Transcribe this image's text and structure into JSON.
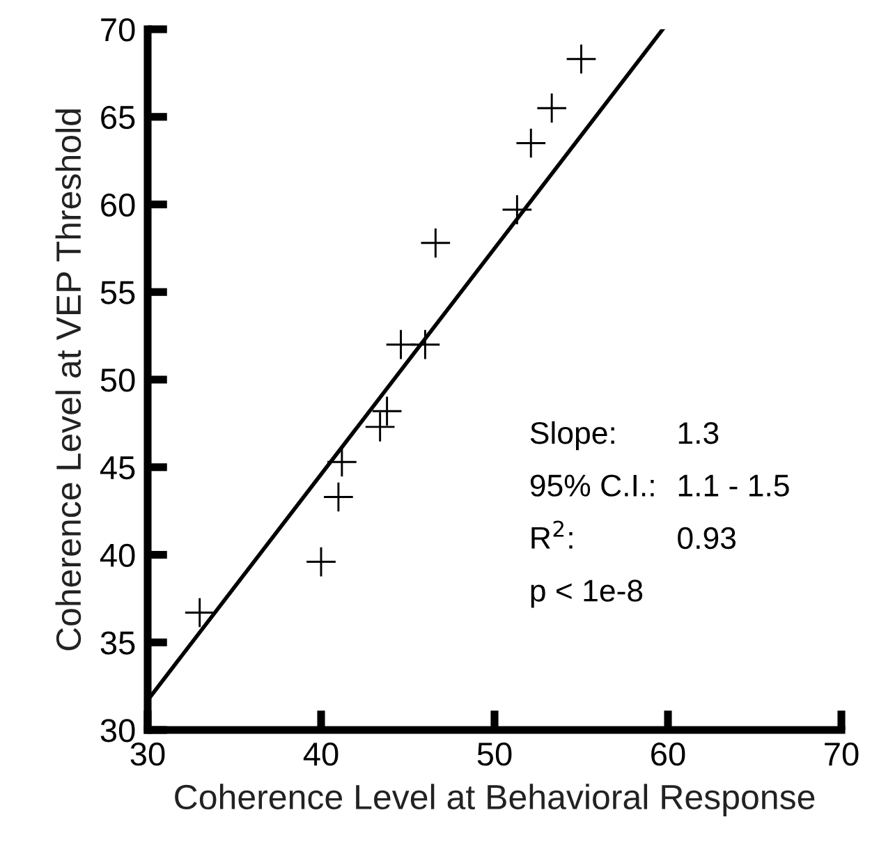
{
  "chart_data": {
    "type": "scatter",
    "xlabel": "Coherence Level at Behavioral Response",
    "ylabel": "Coherence Level at VEP Threshold",
    "xlim": [
      30,
      70
    ],
    "ylim": [
      30,
      70
    ],
    "xticks": [
      30,
      40,
      50,
      60,
      70
    ],
    "yticks": [
      30,
      35,
      40,
      45,
      50,
      55,
      60,
      65,
      70
    ],
    "grid": false,
    "marker": "cross",
    "series": [
      {
        "type": "scatter",
        "color": "#000000",
        "x": [
          33.0,
          40.0,
          41.0,
          41.2,
          43.4,
          43.8,
          44.6,
          46.0,
          46.6,
          51.3,
          52.1,
          53.3,
          55.0
        ],
        "values": [
          36.7,
          39.6,
          43.3,
          45.3,
          47.3,
          48.2,
          52.0,
          52.0,
          57.8,
          59.7,
          63.5,
          65.5,
          68.3
        ]
      },
      {
        "type": "line",
        "color": "#000000",
        "marker": "none",
        "line_style": "solid",
        "x": [
          30,
          59.7
        ],
        "values": [
          31.7,
          70
        ]
      }
    ],
    "annotations": [
      "Slope:",
      "1.3",
      "95% C.I.:",
      "1.1 - 1.5",
      "R$^{2}$:",
      "0.93",
      "p < 1e-8"
    ]
  }
}
